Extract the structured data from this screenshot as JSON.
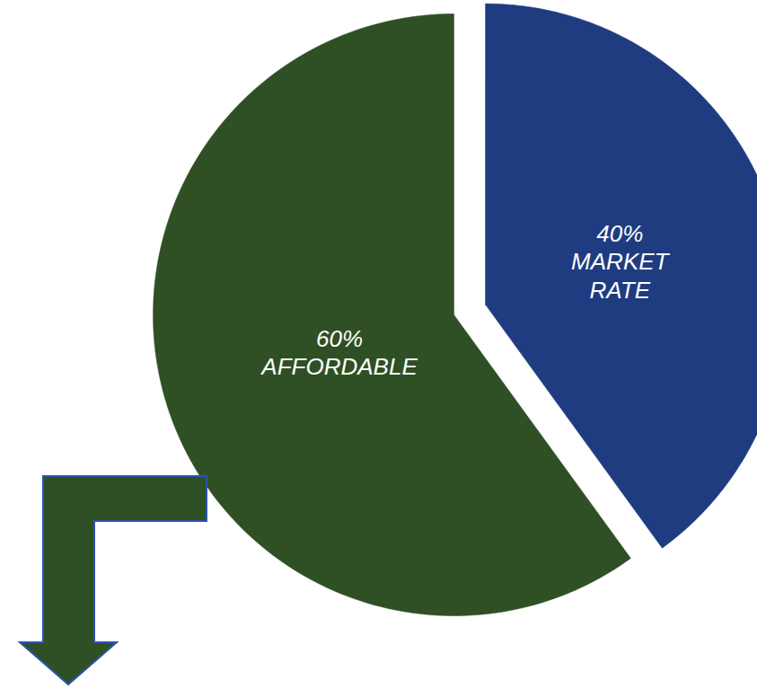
{
  "chart_data": {
    "type": "pie",
    "categories": [
      "AFFORDABLE",
      "MARKET RATE"
    ],
    "values": [
      60,
      40
    ],
    "value_labels": [
      "60%",
      "40%"
    ],
    "colors": [
      "#2f4f24",
      "#1f3c80"
    ],
    "data_labels": true
  }
}
